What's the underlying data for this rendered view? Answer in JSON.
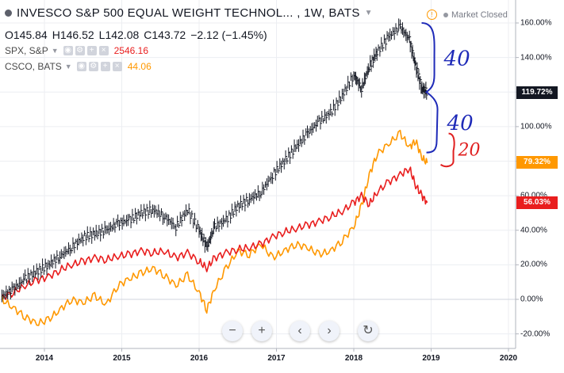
{
  "header": {
    "title": "INVESCO S&P 500 EQUAL WEIGHT TECHNOL... , 1W, BATS",
    "ohlc": {
      "open": "O145.84",
      "high": "H146.52",
      "low": "L142.08",
      "close": "C143.72",
      "change": "−2.12 (−1.45%)"
    },
    "market_status": "Market Closed",
    "status_icon": "!"
  },
  "comparisons": [
    {
      "name": "SPX, S&P",
      "value": "2546.16",
      "color": "#e91e1e"
    },
    {
      "name": "CSCO, BATS",
      "value": "44.06",
      "color": "#ff9800"
    }
  ],
  "nav": {
    "zoom_out": "−",
    "zoom_in": "+",
    "scroll_left": "‹",
    "scroll_right": "›",
    "reset": "↻"
  },
  "annotations": [
    {
      "text": "40",
      "color": "#1e2ab8"
    },
    {
      "text": "40",
      "color": "#1e2ab8"
    },
    {
      "text": "20",
      "color": "#e02020"
    }
  ],
  "chart_data": {
    "type": "line",
    "y_unit": "percent",
    "ylim": [
      -25,
      165
    ],
    "xlim": [
      2013.4,
      2020.2
    ],
    "y_ticks": [
      "160.00%",
      "140.00%",
      "120.00%",
      "100.00%",
      "80.00%",
      "60.00%",
      "40.00%",
      "20.00%",
      "0.00%",
      "-20.00%"
    ],
    "x_ticks": [
      "2014",
      "2015",
      "2016",
      "2017",
      "2018",
      "2019",
      "2020"
    ],
    "grid": true,
    "series": [
      {
        "name": "INVESCO S&P 500 EQUAL WEIGHT TECHNOL...",
        "style": "bars",
        "color": "#131722",
        "last_label": "119.72%",
        "x": [
          2013.45,
          2013.6,
          2013.75,
          2013.9,
          2014.05,
          2014.2,
          2014.35,
          2014.5,
          2014.65,
          2014.8,
          2014.95,
          2015.1,
          2015.25,
          2015.4,
          2015.55,
          2015.7,
          2015.85,
          2016.0,
          2016.1,
          2016.2,
          2016.35,
          2016.5,
          2016.65,
          2016.8,
          2016.95,
          2017.1,
          2017.25,
          2017.4,
          2017.55,
          2017.7,
          2017.85,
          2018.0,
          2018.1,
          2018.2,
          2018.3,
          2018.45,
          2018.6,
          2018.72,
          2018.8,
          2018.88,
          2018.95
        ],
        "values": [
          2,
          6,
          12,
          16,
          20,
          25,
          30,
          36,
          38,
          40,
          44,
          46,
          50,
          52,
          48,
          42,
          52,
          40,
          30,
          42,
          46,
          54,
          58,
          62,
          72,
          80,
          88,
          96,
          103,
          108,
          118,
          130,
          122,
          135,
          143,
          152,
          158,
          150,
          135,
          122,
          120
        ]
      },
      {
        "name": "SPX, S&P",
        "style": "line",
        "color": "#e91e1e",
        "last_label": "56.03%",
        "x": [
          2013.45,
          2013.6,
          2013.75,
          2013.9,
          2014.05,
          2014.2,
          2014.35,
          2014.5,
          2014.65,
          2014.8,
          2014.95,
          2015.1,
          2015.25,
          2015.4,
          2015.55,
          2015.7,
          2015.85,
          2016.0,
          2016.1,
          2016.2,
          2016.35,
          2016.5,
          2016.65,
          2016.8,
          2016.95,
          2017.1,
          2017.25,
          2017.4,
          2017.55,
          2017.7,
          2017.85,
          2018.0,
          2018.1,
          2018.2,
          2018.3,
          2018.45,
          2018.6,
          2018.72,
          2018.8,
          2018.88,
          2018.95
        ],
        "values": [
          1,
          4,
          8,
          11,
          13,
          17,
          20,
          22,
          24,
          23,
          25,
          26,
          28,
          27,
          28,
          24,
          27,
          22,
          18,
          24,
          27,
          29,
          30,
          32,
          36,
          39,
          41,
          43,
          45,
          48,
          51,
          56,
          60,
          55,
          62,
          68,
          72,
          76,
          66,
          60,
          56
        ]
      },
      {
        "name": "CSCO, BATS",
        "style": "line",
        "color": "#ff9800",
        "last_label": "79.32%",
        "x": [
          2013.45,
          2013.6,
          2013.75,
          2013.9,
          2014.05,
          2014.2,
          2014.35,
          2014.5,
          2014.65,
          2014.8,
          2014.95,
          2015.1,
          2015.25,
          2015.4,
          2015.55,
          2015.7,
          2015.85,
          2016.0,
          2016.1,
          2016.2,
          2016.35,
          2016.5,
          2016.65,
          2016.8,
          2016.95,
          2017.1,
          2017.25,
          2017.4,
          2017.55,
          2017.7,
          2017.85,
          2018.0,
          2018.1,
          2018.2,
          2018.3,
          2018.45,
          2018.6,
          2018.72,
          2018.8,
          2018.88,
          2018.95
        ],
        "values": [
          0,
          -5,
          -10,
          -14,
          -12,
          -6,
          0,
          -2,
          2,
          -3,
          8,
          12,
          15,
          18,
          14,
          8,
          14,
          4,
          -6,
          6,
          18,
          28,
          26,
          32,
          24,
          28,
          32,
          30,
          26,
          28,
          34,
          42,
          54,
          72,
          84,
          90,
          96,
          88,
          92,
          82,
          79
        ]
      }
    ]
  }
}
